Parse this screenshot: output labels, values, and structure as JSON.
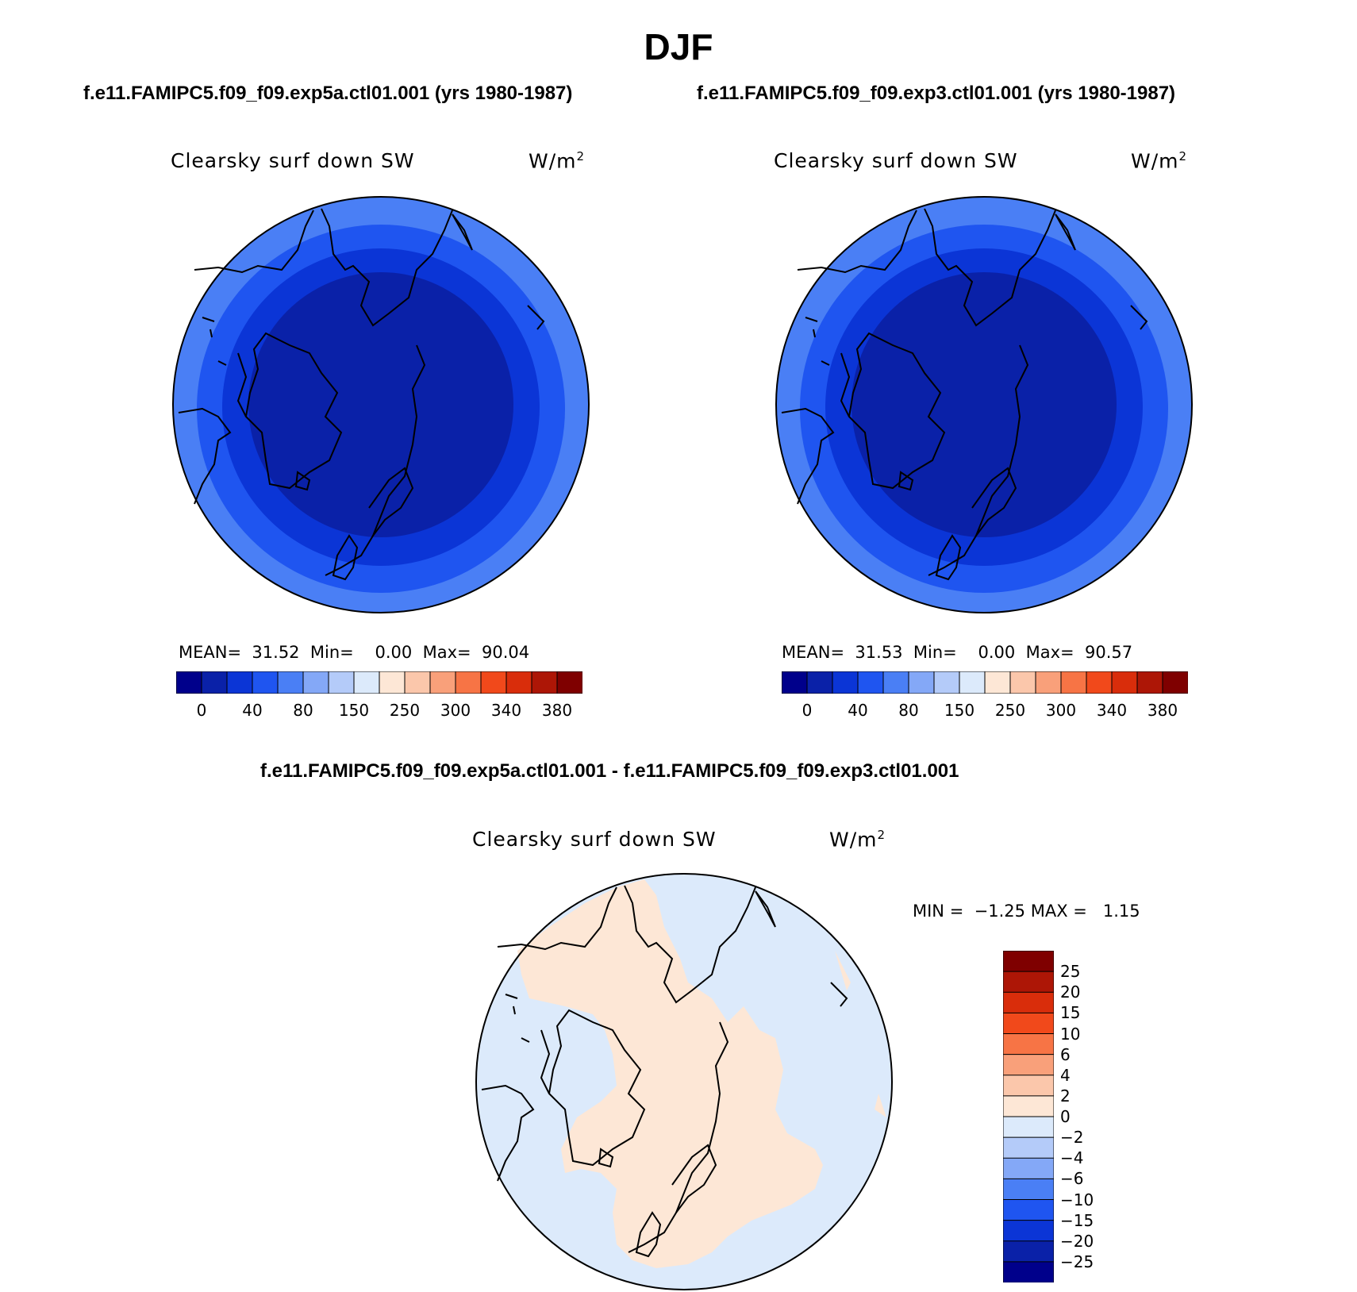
{
  "figure": {
    "title": "DJF",
    "case_a": "f.e11.FAMIPC5.f09_f09.exp5a.ctl01.001 (yrs 1980-1987)",
    "case_b": "f.e11.FAMIPC5.f09_f09.exp3.ctl01.001 (yrs 1980-1987)",
    "diff_title": "f.e11.FAMIPC5.f09_f09.exp5a.ctl01.001 - f.e11.FAMIPC5.f09_f09.exp3.ctl01.001"
  },
  "panels": [
    {
      "variable": "Clearsky surf down SW",
      "units": "W/m",
      "units_sup": "2",
      "mean_label": "MEAN=",
      "mean": "31.52",
      "min_label": "Min=",
      "min": "0.00",
      "max_label": "Max=",
      "max": "90.04"
    },
    {
      "variable": "Clearsky surf down SW",
      "units": "W/m",
      "units_sup": "2",
      "mean_label": "MEAN=",
      "mean": "31.53",
      "min_label": "Min=",
      "min": "0.00",
      "max_label": "Max=",
      "max": "90.57"
    }
  ],
  "diff_panel": {
    "variable": "Clearsky surf down SW",
    "units": "W/m",
    "units_sup": "2",
    "min_label": "MIN =",
    "min": "−1.25",
    "max_label": "MAX =",
    "max": "1.15"
  },
  "colorbar_top": {
    "colors": [
      "#00008b",
      "#0a21a8",
      "#0b35d6",
      "#1f55f0",
      "#4a7ff5",
      "#84a8f7",
      "#b4cbf9",
      "#dceafb",
      "#fde7d6",
      "#fbc7ab",
      "#f9a07a",
      "#f77445",
      "#f1491b",
      "#d92d0b",
      "#ad1606",
      "#7f0000"
    ],
    "labels": [
      "0",
      "40",
      "80",
      "150",
      "250",
      "300",
      "340",
      "380"
    ]
  },
  "colorbar_diff": {
    "colors": [
      "#7f0000",
      "#ad1606",
      "#d92d0b",
      "#f1491b",
      "#f77445",
      "#f9a07a",
      "#fbc7ab",
      "#fde7d6",
      "#dceafb",
      "#b4cbf9",
      "#84a8f7",
      "#4a7ff5",
      "#1f55f0",
      "#0b35d6",
      "#0a21a8",
      "#00008b"
    ],
    "labels": [
      "25",
      "20",
      "15",
      "10",
      "6",
      "4",
      "2",
      "0",
      "−2",
      "−4",
      "−6",
      "−10",
      "−15",
      "−20",
      "−25"
    ]
  },
  "map_colors": {
    "ring_outer": "#4a7ff5",
    "ring_mid": "#1f55f0",
    "ring_inner": "#0b35d6",
    "core": "#0a21a8",
    "diff_negative": "#dceafb",
    "diff_positive": "#fde7d6"
  }
}
